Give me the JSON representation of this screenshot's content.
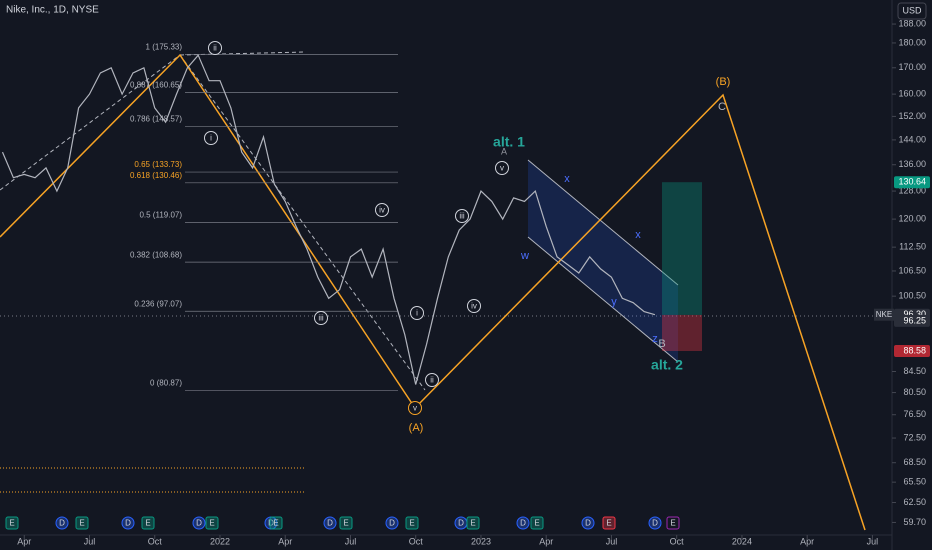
{
  "chart_data": {
    "type": "line",
    "title": "Nike, Inc., 1D, NYSE",
    "currency": "USD",
    "symbol": "NKE",
    "x": [
      2.0,
      2.5,
      3.0,
      3.5,
      4.0,
      4.5,
      5.0,
      5.5,
      6.0,
      6.5,
      7.0,
      7.5,
      8.0,
      8.5,
      9.0,
      9.5,
      10.0,
      10.5,
      11.0,
      11.5,
      12.0,
      12.5,
      13.0,
      13.5,
      14.0,
      14.5,
      15.0,
      15.5,
      16.0,
      16.5,
      17.0,
      17.5,
      18.0,
      18.5,
      19.0,
      19.5,
      20.0,
      20.5,
      21.0,
      21.5,
      22.0,
      22.5,
      23.0,
      23.5,
      24.0,
      24.5,
      25.0,
      25.5,
      26.0,
      26.5,
      27.0,
      27.5,
      28.0,
      28.5,
      29.0,
      29.5,
      30.0,
      30.5,
      31.0,
      31.5,
      32.0
    ],
    "series": [
      {
        "name": "NKE",
        "color": "#b2b5be",
        "values": [
          140,
          132,
          133,
          132,
          135,
          128,
          135,
          155,
          160,
          168,
          170,
          160,
          168,
          170,
          155,
          150,
          160,
          170,
          175,
          165,
          165,
          155,
          140,
          135,
          145,
          130,
          125,
          118,
          112,
          105,
          100,
          102,
          110,
          112,
          105,
          112,
          100,
          92,
          82,
          90,
          100,
          110,
          117,
          120,
          128,
          125,
          120,
          126,
          125,
          128,
          118,
          110,
          108,
          106,
          110,
          107,
          105,
          100,
          99,
          97,
          96.3
        ]
      }
    ],
    "xlim": [
      1.885,
      42.9
    ],
    "xticks": [
      {
        "value": 3,
        "label": "Apr"
      },
      {
        "value": 6,
        "label": "Jul"
      },
      {
        "value": 9,
        "label": "Oct"
      },
      {
        "value": 12,
        "label": "2022"
      },
      {
        "value": 15,
        "label": "Apr"
      },
      {
        "value": 18,
        "label": "Jul"
      },
      {
        "value": 21,
        "label": "Oct"
      },
      {
        "value": 24,
        "label": "2023"
      },
      {
        "value": 27,
        "label": "Apr"
      },
      {
        "value": 30,
        "label": "Jul"
      },
      {
        "value": 33,
        "label": "Oct"
      },
      {
        "value": 36,
        "label": "2024"
      },
      {
        "value": 39,
        "label": "Apr"
      },
      {
        "value": 42,
        "label": "Jul"
      }
    ],
    "ylim": [
      58,
      198.7
    ],
    "log_scale": true,
    "yticks": [
      {
        "value": 188,
        "label": "188.00"
      },
      {
        "value": 180,
        "label": "180.00"
      },
      {
        "value": 170,
        "label": "170.00"
      },
      {
        "value": 160,
        "label": "160.00"
      },
      {
        "value": 152,
        "label": "152.00"
      },
      {
        "value": 144,
        "label": "144.00"
      },
      {
        "value": 136,
        "label": "136.00"
      },
      {
        "value": 128,
        "label": "128.00"
      },
      {
        "value": 120,
        "label": "120.00"
      },
      {
        "value": 112.5,
        "label": "112.50"
      },
      {
        "value": 106.5,
        "label": "106.50"
      },
      {
        "value": 100.5,
        "label": "100.50"
      },
      {
        "value": 84.5,
        "label": "84.50"
      },
      {
        "value": 80.5,
        "label": "80.50"
      },
      {
        "value": 76.5,
        "label": "76.50"
      },
      {
        "value": 72.5,
        "label": "72.50"
      },
      {
        "value": 68.5,
        "label": "68.50"
      },
      {
        "value": 65.5,
        "label": "65.50"
      },
      {
        "value": 62.5,
        "label": "62.50"
      },
      {
        "value": 59.7,
        "label": "59.70"
      }
    ],
    "fib_levels": [
      {
        "label": "1 (175.33)",
        "price": 175.33,
        "color": "#b2b5be"
      },
      {
        "label": "0.887 (160.65)",
        "price": 160.65,
        "color": "#b2b5be"
      },
      {
        "label": "0.786 (148.57)",
        "price": 148.57,
        "color": "#b2b5be"
      },
      {
        "label": "0.65 (133.73)",
        "price": 133.73,
        "color": "#f7a325"
      },
      {
        "label": "0.618 (130.46)",
        "price": 130.46,
        "color": "#f7a325"
      },
      {
        "label": "0.5 (119.07)",
        "price": 119.07,
        "color": "#b2b5be"
      },
      {
        "label": "0.382 (108.68)",
        "price": 108.68,
        "color": "#b2b5be"
      },
      {
        "label": "0.236 (97.07)",
        "price": 97.07,
        "color": "#b2b5be"
      },
      {
        "label": "0 (80.87)",
        "price": 80.87,
        "color": "#b2b5be"
      }
    ],
    "price_badges": [
      {
        "label": "130.64",
        "price": 130.64,
        "color": "#089981"
      },
      {
        "label": "96.30",
        "price": 96.3,
        "color": "#2a2e39"
      },
      {
        "label": "96.25",
        "price": 96.25,
        "color": "#2a2e39"
      },
      {
        "label": "88.58",
        "price": 88.58,
        "color": "#b22833"
      }
    ],
    "waves": [
      {
        "label": "ii"
      },
      {
        "label": "i"
      },
      {
        "label": "iii"
      },
      {
        "label": "iv"
      },
      {
        "label": "i"
      },
      {
        "label": "ii"
      },
      {
        "label": "v"
      },
      {
        "label": "iii"
      },
      {
        "label": "iv"
      },
      {
        "label": "v"
      }
    ],
    "annotations": [
      {
        "label": "alt. 1"
      },
      {
        "label": "A"
      },
      {
        "label": "x"
      },
      {
        "label": "w"
      },
      {
        "label": "x"
      },
      {
        "label": "y"
      },
      {
        "label": "z"
      },
      {
        "label": "B"
      },
      {
        "label": "alt. 2"
      },
      {
        "label": "(A)"
      },
      {
        "label": "(B)"
      },
      {
        "label": "C"
      }
    ],
    "events": [
      "E",
      "D",
      "E",
      "D",
      "E",
      "D",
      "E",
      "D",
      "E",
      "D",
      "E",
      "D",
      "E",
      "D",
      "E",
      "D",
      "E",
      "D",
      "E",
      "D",
      "E"
    ]
  }
}
